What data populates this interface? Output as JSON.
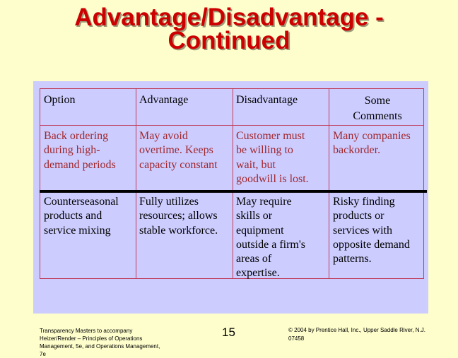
{
  "slide": {
    "title_lines": [
      "Advantage/Disadvantage -",
      "Continued"
    ]
  },
  "table": {
    "headers": [
      "Option",
      "Advantage",
      "Disadvantage",
      "Some Comments"
    ],
    "rows": [
      {
        "option": [
          "Back ordering",
          "during high-",
          "demand periods"
        ],
        "advantage": [
          "May avoid",
          "overtime.  Keeps",
          "capacity constant"
        ],
        "disadvantage": [
          "Customer must",
          "be willing to",
          "wait, but",
          "goodwill is lost."
        ],
        "comments": [
          "Many companies",
          "backorder."
        ]
      },
      {
        "option": [
          "Counterseasonal",
          "products and",
          "service mixing"
        ],
        "advantage": [
          "Fully utilizes",
          "resources; allows",
          "stable workforce."
        ],
        "disadvantage": [
          "May require",
          "skills or",
          "equipment",
          "outside a firm's",
          "areas of",
          "expertise."
        ],
        "comments": [
          "Risky finding",
          "products or",
          "services with",
          "opposite demand",
          "patterns."
        ]
      }
    ]
  },
  "footer": {
    "left_lines": [
      "Transparency Masters to accompany",
      "Heizer/Render – Principles of Operations",
      "Management, 5e, and Operations Management,",
      "7e"
    ],
    "page_number": "15",
    "right_lines": [
      "© 2004 by Prentice Hall, Inc., Upper Saddle River, N.J.",
      "07458"
    ]
  },
  "colors": {
    "title": "#cc0000",
    "background": "#fefecc",
    "table_panel": "#ccccff",
    "body_text_row1": "#a0282e",
    "grid": "#c03c5a"
  }
}
